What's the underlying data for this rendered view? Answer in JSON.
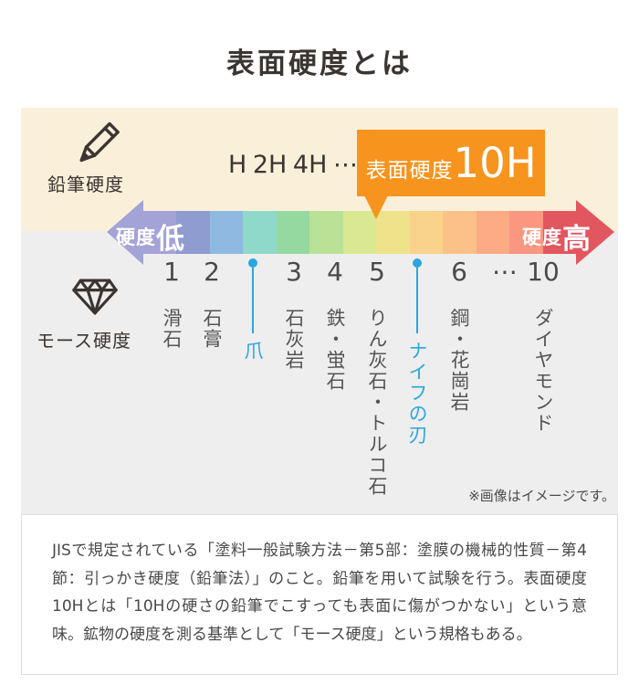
{
  "title": "表面硬度とは",
  "pencil_section": {
    "label": "鉛筆硬度",
    "ticks": [
      "H",
      "2H",
      "4H",
      "⋯"
    ],
    "callout": {
      "prefix": "表面硬度",
      "value": "10H"
    }
  },
  "scale_bar": {
    "left_label": {
      "small": "硬度",
      "big": "低"
    },
    "right_label": {
      "small": "硬度",
      "big": "高"
    },
    "segment_colors": [
      "#a3a3d8",
      "#8f9cd0",
      "#8fb9e0",
      "#8ed9c9",
      "#95d9a1",
      "#b9e297",
      "#d9e891",
      "#eee28b",
      "#f9d38b",
      "#fcc189",
      "#fcab84",
      "#fb9680",
      "#e2565f"
    ]
  },
  "mohs_section": {
    "label": "モース硬度",
    "items": [
      {
        "number": "1",
        "label": "滑石"
      },
      {
        "number": "2",
        "label": "石膏"
      },
      {
        "number": "",
        "label": "爪",
        "marker": true
      },
      {
        "number": "3",
        "label": "石灰岩"
      },
      {
        "number": "4",
        "label": "鉄・蛍石"
      },
      {
        "number": "5",
        "label": "りん灰石・トルコ石"
      },
      {
        "number": "",
        "label": "ナイフの刃",
        "marker": true
      },
      {
        "number": "6",
        "label": "鋼・花崗岩"
      },
      {
        "number": "⋯",
        "label": ""
      },
      {
        "number": "10",
        "label": "ダイヤモンド"
      }
    ]
  },
  "note": "※画像はイメージです。",
  "description": "JISで規定されている「塗料一般試験方法－第5部：塗膜の機械的性質－第4節：引っかき硬度（鉛筆法）」のこと。鉛筆を用いて試験を行う。表面硬度10Hとは「10Hの硬さの鉛筆でこすっても表面に傷がつかない」という意味。鉱物の硬度を測る基準として「モース硬度」という規格もある。",
  "colors": {
    "cream_panel": "#faf0da",
    "gray_panel": "#eeeeee",
    "callout_orange": "#f7941e",
    "marker_blue": "#2aa6de",
    "bar_left_purple": "#a3a3d8",
    "bar_right_red": "#e2565f",
    "text_dark": "#3b3532"
  }
}
